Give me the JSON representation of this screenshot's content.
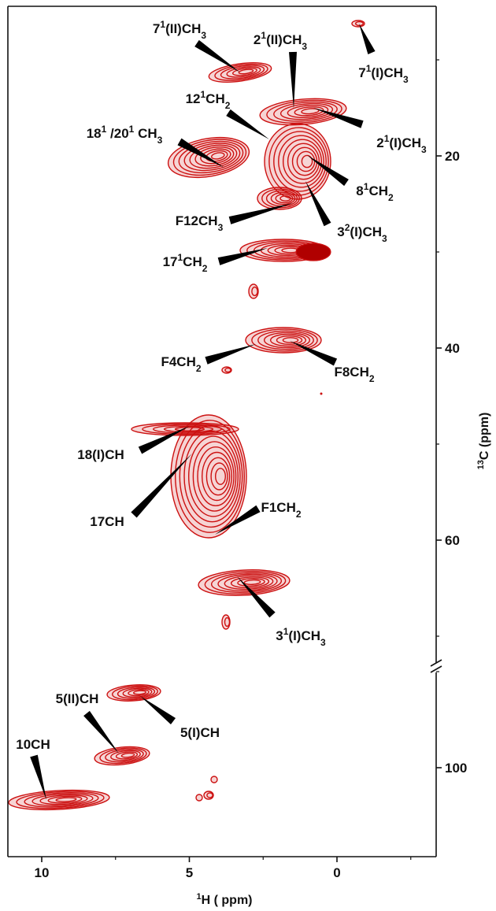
{
  "chart_data": {
    "type": "scatter",
    "subtype": "2D NMR correlation spectrum (contour plot)",
    "title": "",
    "xlabel_sup": "1",
    "xlabel_main": "H ( ppm)",
    "ylabel_sup": "13",
    "ylabel_main": "C (ppm)",
    "x_axis": {
      "reversed": true,
      "ticks": [
        {
          "value": 10,
          "label": "10"
        },
        {
          "value": 5,
          "label": "5"
        },
        {
          "value": 0,
          "label": "0"
        }
      ]
    },
    "y_axis": {
      "reversed": true,
      "position": "right",
      "axis_break": true,
      "ticks": [
        {
          "value": 20,
          "label": "20"
        },
        {
          "value": 40,
          "label": "40"
        },
        {
          "value": 60,
          "label": "60"
        },
        {
          "value": 100,
          "label": "100"
        }
      ]
    },
    "grid": false,
    "legend": "none",
    "contour_color": "#cc1111",
    "peaks": [
      {
        "base": "7",
        "sup": "1",
        "rest": "(II)CH",
        "sub": "3",
        "h": 3.7,
        "c": 11
      },
      {
        "base": "2",
        "sup": "1",
        "rest": "(II)CH",
        "sub": "3",
        "h": 1.4,
        "c": 16
      },
      {
        "base": "7",
        "sup": "1",
        "rest": "(I)CH",
        "sub": "3",
        "h": -0.8,
        "c": 6
      },
      {
        "base": "12",
        "sup": "1",
        "rest": "CH",
        "sub": "2",
        "h": 2.2,
        "c": 18
      },
      {
        "base": "2",
        "sup": "1",
        "rest": "(I)CH",
        "sub": "3",
        "h": 1.1,
        "c": 15.5
      },
      {
        "base": "18",
        "sup": "1",
        "rest": " /20",
        "sup2": "1",
        "rest2": " CH",
        "sub": "3",
        "h": 4.8,
        "c": 21
      },
      {
        "base": "8",
        "sup": "1",
        "rest": "CH",
        "sub": "2",
        "h": 1.0,
        "c": 20
      },
      {
        "base": "F12CH",
        "sub": "3",
        "h": 2.3,
        "c": 25
      },
      {
        "base": "3",
        "sup": "2",
        "rest": "(I)CH",
        "sub": "3",
        "h": 1.1,
        "c": 23
      },
      {
        "base": "17",
        "sup": "1",
        "rest": "CH",
        "sub": "2",
        "h": 2.5,
        "c": 30
      },
      {
        "base": "F4CH",
        "sub": "2",
        "h": 2.8,
        "c": 39.5
      },
      {
        "base": "F8CH",
        "sub": "2",
        "h": 1.6,
        "c": 39.5
      },
      {
        "base": "18(I)CH",
        "h": 5.1,
        "c": 48
      },
      {
        "base": "17CH",
        "h": 5.0,
        "c": 51
      },
      {
        "base": "F1CH",
        "sub": "2",
        "h": 4.0,
        "c": 59.5
      },
      {
        "base": "3",
        "sup": "1",
        "rest": "(I)CH",
        "sub": "3",
        "h": 3.4,
        "c": 64
      },
      {
        "base": "5(II)CH",
        "h": 7.4,
        "c": 101
      },
      {
        "base": "5(I)CH",
        "h": 6.9,
        "c": 95
      },
      {
        "base": "10CH",
        "h": 9.9,
        "c": 109
      }
    ]
  }
}
